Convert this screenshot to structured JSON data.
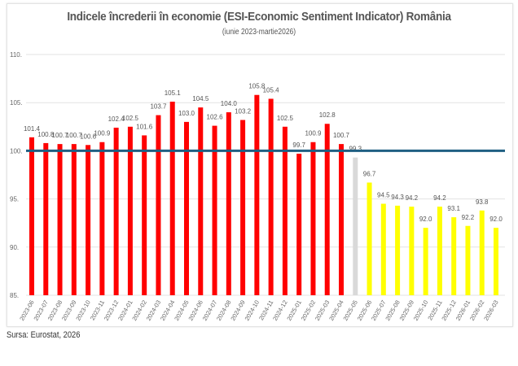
{
  "chart_data": {
    "type": "bar",
    "title": "Indicele încrederii în economie (ESI-Economic Sentiment Indicator) România",
    "subtitle": "(iunie 2023-martie2026)",
    "source": "Sursa: Eurostat, 2026",
    "ylim": [
      85,
      110
    ],
    "yticks": [
      85,
      90,
      95,
      100,
      105,
      110
    ],
    "ytick_labels": [
      "85.",
      "90.",
      "95.",
      "100.",
      "105.",
      "110."
    ],
    "grid": true,
    "reference_line": {
      "value": 100,
      "color": "#1f5f82"
    },
    "categories": [
      "2023-06",
      "2023-07",
      "2023-08",
      "2023-09",
      "2023-10",
      "2023-11",
      "2023-12",
      "2024-01",
      "2024-02",
      "2024-03",
      "2024-04",
      "2024-05",
      "2024-06",
      "2024-07",
      "2024-08",
      "2024-09",
      "2024-10",
      "2024-11",
      "2024-12",
      "2025-01",
      "2025-02",
      "2025-03",
      "2025-04",
      "2025-05",
      "2025-06",
      "2025-07",
      "2025-08",
      "2025-09",
      "2025-10",
      "2025-11",
      "2025-12",
      "2026-01",
      "2026-02",
      "2026-03"
    ],
    "values": [
      101.4,
      100.8,
      100.7,
      100.7,
      100.6,
      100.9,
      102.4,
      102.5,
      101.6,
      103.7,
      105.1,
      103.0,
      104.5,
      102.6,
      104.0,
      103.2,
      105.8,
      105.4,
      102.5,
      99.7,
      100.9,
      102.8,
      100.7,
      99.3,
      96.7,
      94.5,
      94.3,
      94.2,
      92.0,
      94.2,
      93.1,
      92.2,
      93.8,
      92.0
    ],
    "bar_colors": {
      "red": "#ff0000",
      "gray": "#d9d9d9",
      "yellow": "#ffff00"
    },
    "color_groups": {
      "red_until": "2025-04",
      "gray": "2025-05",
      "yellow_from": "2025-06"
    }
  }
}
